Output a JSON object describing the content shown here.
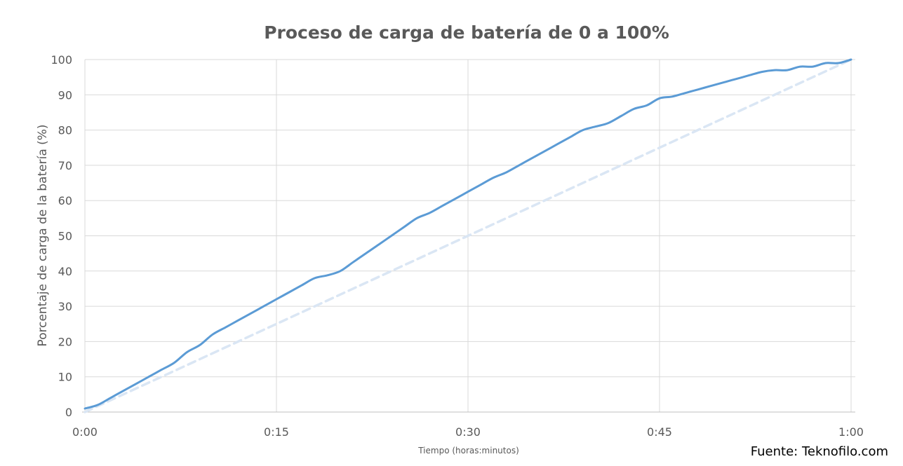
{
  "chart_data": {
    "type": "line",
    "title": "Proceso de carga de batería de 0 a 100%",
    "xlabel": "Tiempo (horas:minutos)",
    "ylabel": "Porcentaje de carga de la batería (%)",
    "source": "Fuente: Teknofilo.com",
    "x_unit": "minutes",
    "xlim": [
      0,
      60
    ],
    "ylim": [
      0,
      100
    ],
    "x_ticks": [
      0,
      15,
      30,
      45,
      60
    ],
    "x_tick_labels": [
      "0:00",
      "0:15",
      "0:30",
      "0:45",
      "1:00"
    ],
    "y_ticks": [
      0,
      10,
      20,
      30,
      40,
      50,
      60,
      70,
      80,
      90,
      100
    ],
    "grid": true,
    "series": [
      {
        "style": "solid",
        "color": "#5b9bd5",
        "x": [
          0,
          1,
          2,
          3,
          4,
          5,
          6,
          7,
          8,
          9,
          10,
          11,
          12,
          13,
          14,
          15,
          16,
          17,
          18,
          19,
          20,
          21,
          22,
          23,
          24,
          25,
          26,
          27,
          28,
          29,
          30,
          31,
          32,
          33,
          34,
          35,
          36,
          37,
          38,
          39,
          40,
          41,
          42,
          43,
          44,
          45,
          46,
          47,
          48,
          49,
          50,
          51,
          52,
          53,
          54,
          55,
          56,
          57,
          58,
          59,
          60
        ],
        "values": [
          1,
          2,
          4,
          6,
          8,
          10,
          12,
          14,
          17,
          19,
          22,
          24,
          26,
          28,
          30,
          32,
          34,
          36,
          38,
          38.8,
          40,
          42.5,
          45,
          47.5,
          50,
          52.5,
          55,
          56.5,
          58.5,
          60.5,
          62.5,
          64.5,
          66.5,
          68,
          70,
          72,
          74,
          76,
          78,
          80,
          81,
          82,
          84,
          86,
          87,
          89,
          89.5,
          90.5,
          91.5,
          92.5,
          93.5,
          94.5,
          95.5,
          96.5,
          97,
          97,
          98,
          98,
          99,
          99,
          100
        ]
      },
      {
        "style": "dashed",
        "color": "#dae6f4",
        "x": [
          0,
          60
        ],
        "values": [
          0,
          100
        ]
      }
    ]
  }
}
